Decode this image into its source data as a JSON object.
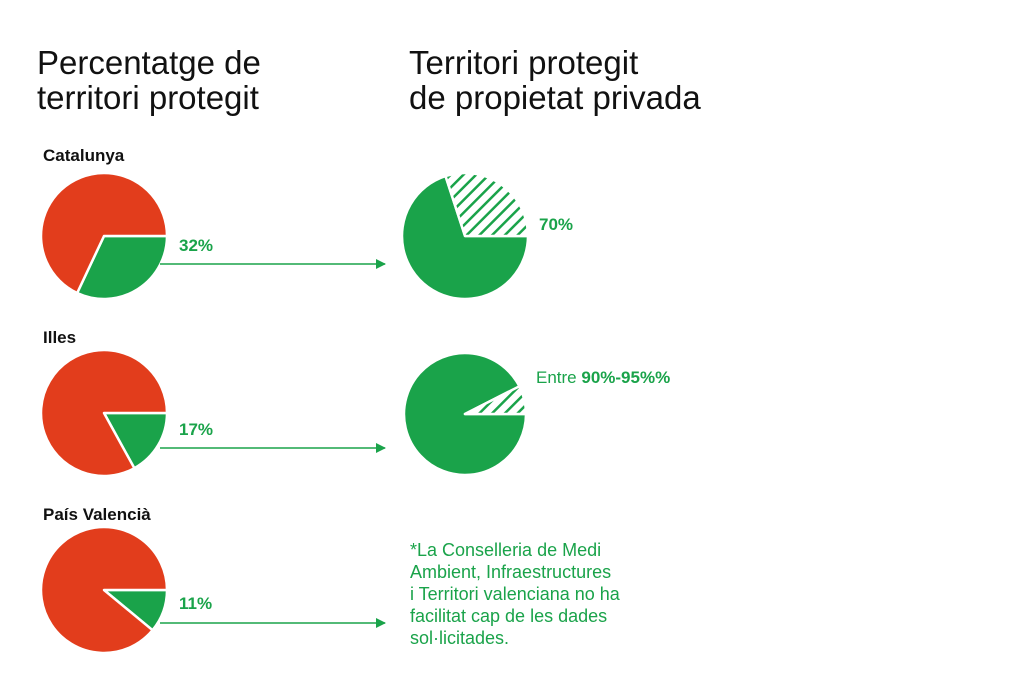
{
  "titles": {
    "protected_share": "Percentatge de\nterritori protegit",
    "private_ownership": "Territori protegit\nde propietat privada"
  },
  "colors": {
    "protected": "#1aa34a",
    "unprotected": "#e23d1c",
    "text": "#111111"
  },
  "chart_data": [
    {
      "type": "pie",
      "region": "Catalunya",
      "slices": [
        {
          "label": "32%",
          "value": 32,
          "color": "#1aa34a"
        },
        {
          "value": 68,
          "color": "#e23d1c"
        }
      ]
    },
    {
      "type": "pie",
      "region": "Illes",
      "slices": [
        {
          "label": "17%",
          "value": 17,
          "color": "#1aa34a"
        },
        {
          "value": 83,
          "color": "#e23d1c"
        }
      ]
    },
    {
      "type": "pie",
      "region": "País Valencià",
      "slices": [
        {
          "label": "11%",
          "value": 11,
          "color": "#1aa34a"
        },
        {
          "value": 89,
          "color": "#e23d1c"
        }
      ]
    },
    {
      "type": "pie",
      "region": "Catalunya",
      "label_prefix": "",
      "label": "70%",
      "slices": [
        {
          "value": 70,
          "fill": "solid",
          "color": "#1aa34a"
        },
        {
          "value": 30,
          "fill": "hatched",
          "color": "#1aa34a"
        }
      ]
    },
    {
      "type": "pie",
      "region": "Illes",
      "label_prefix": "Entre ",
      "label": "90%-95%%",
      "slices": [
        {
          "value": 92.5,
          "fill": "solid",
          "color": "#1aa34a"
        },
        {
          "value": 7.5,
          "fill": "hatched",
          "color": "#1aa34a"
        }
      ]
    }
  ],
  "footnote": "*La Conselleria de Medi\nAmbient, Infraestructures\ni Territori valenciana no ha\nfacilitat cap de les dades\nsol·licitades."
}
